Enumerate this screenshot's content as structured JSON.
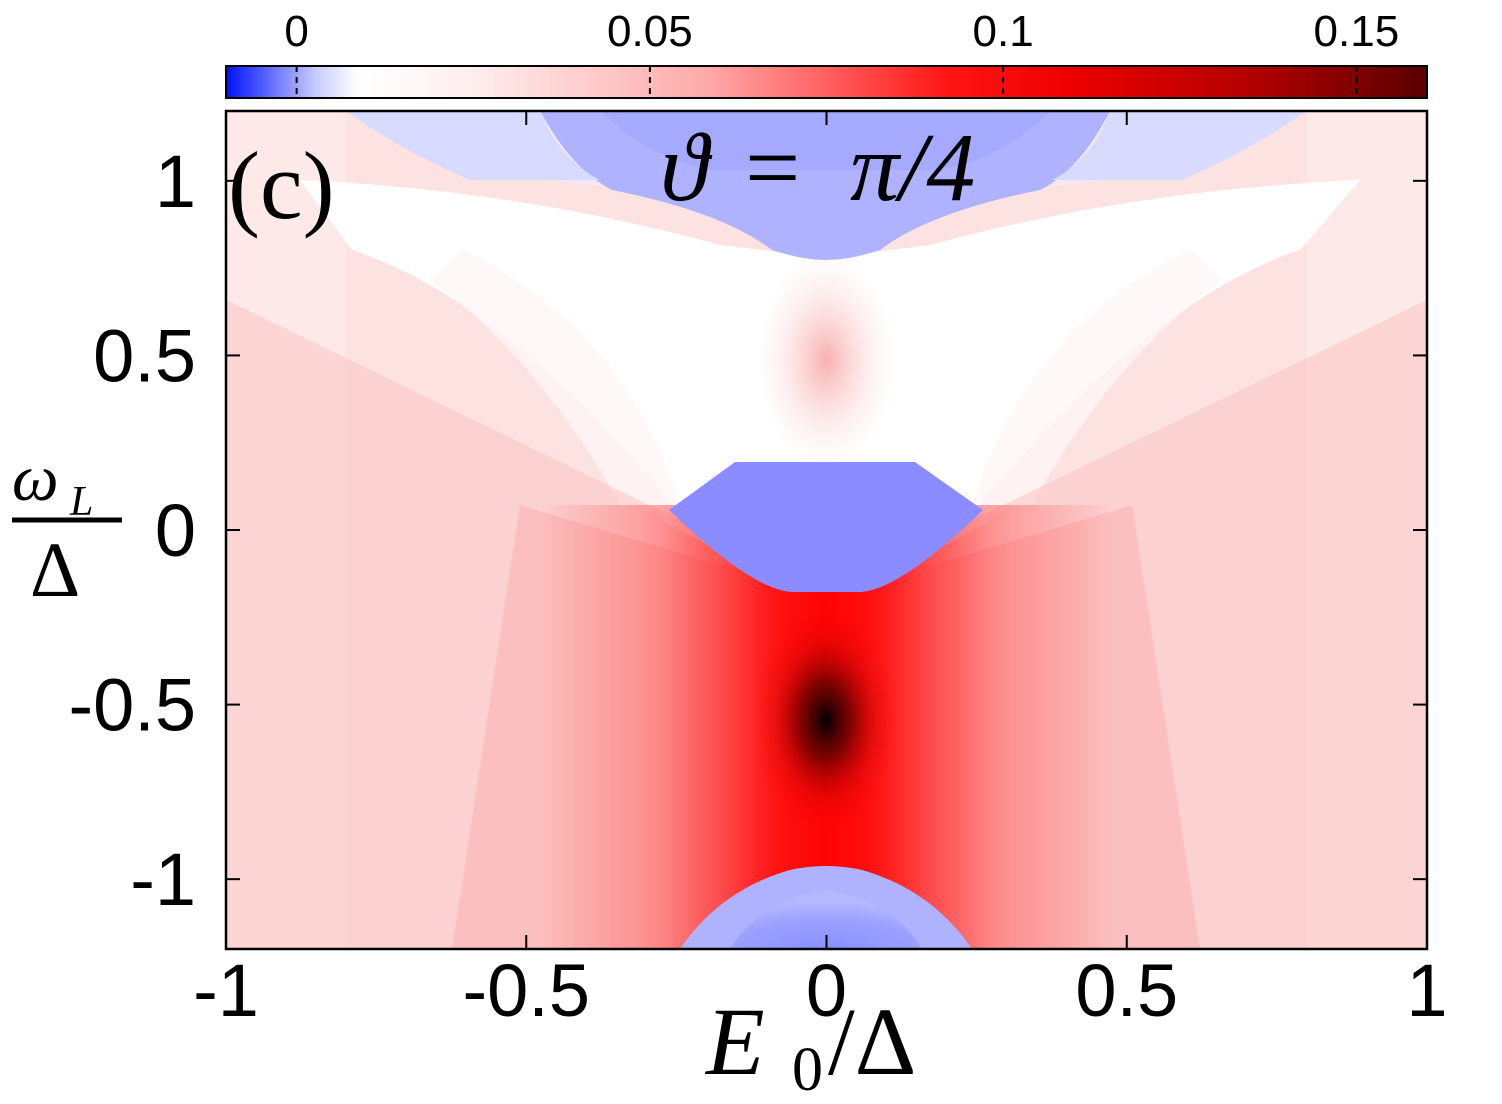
{
  "chart_data": {
    "type": "heatmap",
    "panel_label": "(c)",
    "annotation": "ϑ = π/4",
    "annotation_parts": {
      "symbol": "ϑ",
      "equals": "=",
      "value": "π/4"
    },
    "xlabel": "E0/Δ",
    "xlabel_parts": {
      "main": "E",
      "sub": "0",
      "rest": "/Δ"
    },
    "ylabel": "ωL/Δ",
    "ylabel_parts": {
      "num": "ω",
      "num_sub": "L",
      "den": "Δ"
    },
    "xlim": [
      -1,
      1
    ],
    "ylim": [
      -1.2,
      1.2
    ],
    "x_ticks": [
      -1,
      -0.5,
      0,
      0.5,
      1
    ],
    "x_tick_labels": [
      "-1",
      "-0.5",
      "0",
      "0.5",
      "1"
    ],
    "y_ticks": [
      1,
      0.5,
      0,
      -0.5,
      -1
    ],
    "y_tick_labels": [
      "1",
      "0.5",
      "0",
      "-0.5",
      "-1"
    ],
    "colorbar": {
      "range": [
        -0.01,
        0.16
      ],
      "ticks": [
        0,
        0.05,
        0.1,
        0.15
      ],
      "tick_labels": [
        "0",
        "0.05",
        "0.1",
        "0.15"
      ],
      "placement": "top",
      "colors": {
        "negative": "#0000ff",
        "zero": "#ffffff",
        "mid": "#ff0000",
        "max": "#5a0000"
      }
    },
    "regions": [
      {
        "name": "maximum",
        "x": 0,
        "y": -0.6,
        "value": 0.16
      },
      {
        "name": "negative-top",
        "x_range": [
          -0.45,
          0.45
        ],
        "y_range": [
          0.77,
          1.2
        ],
        "value": -0.0035
      },
      {
        "name": "negative-center",
        "x_range": [
          -0.25,
          0.25
        ],
        "y_range": [
          -0.18,
          0.2
        ],
        "value": -0.005
      },
      {
        "name": "negative-bottom",
        "x_range": [
          -0.25,
          0.25
        ],
        "y_range": [
          -1.2,
          -0.96
        ],
        "value": -0.005
      },
      {
        "name": "weak-maximum",
        "x": 0,
        "y": 0.42,
        "value": 0.022
      }
    ]
  }
}
